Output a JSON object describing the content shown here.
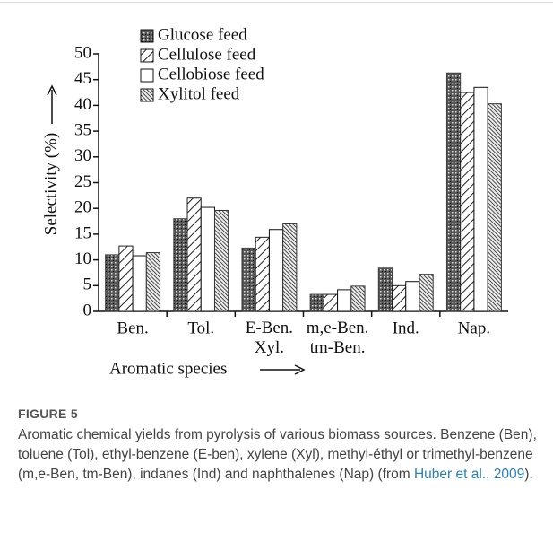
{
  "chart_data": {
    "type": "bar",
    "xlabel": "Aromatic species",
    "ylabel": "Selectivity (%)",
    "categories": [
      "Ben.",
      "Tol.",
      "E-Ben.\nXyl.",
      "m,e-Ben.\ntm-Ben.",
      "Ind.",
      "Nap."
    ],
    "series": [
      {
        "name": "Glucose feed",
        "color": "#444444",
        "values": [
          11,
          18,
          12.3,
          3.3,
          8.4,
          46.3
        ]
      },
      {
        "name": "Cellulose feed",
        "color": "#222222",
        "values": [
          12.7,
          22,
          14.4,
          3.3,
          5,
          42.5
        ]
      },
      {
        "name": "Cellobiose feed",
        "color": "#ffffff",
        "values": [
          10.8,
          20.2,
          15.9,
          4.2,
          5.8,
          43.5
        ]
      },
      {
        "name": "Xylitol feed",
        "color": "#333333",
        "values": [
          11.4,
          19.6,
          17,
          4.9,
          7.2,
          40.3
        ]
      }
    ],
    "ylim": [
      0,
      50
    ],
    "yticks": [
      0,
      5,
      10,
      15,
      20,
      25,
      30,
      35,
      40,
      45,
      50
    ]
  },
  "figure": {
    "label": "FIGURE 5",
    "caption": "Aromatic chemical yields from pyrolysis of various biomass sources. Benzene (Ben), toluene (Tol), ethyl-benzene (E-ben), xylene (Xyl), methyl-éthyl or trimethyl-benzene (m,e-Ben, tm-Ben), indanes (Ind) and naphthalenes (Nap) (from ",
    "link": "Huber et al., 2009",
    "end": ")."
  }
}
